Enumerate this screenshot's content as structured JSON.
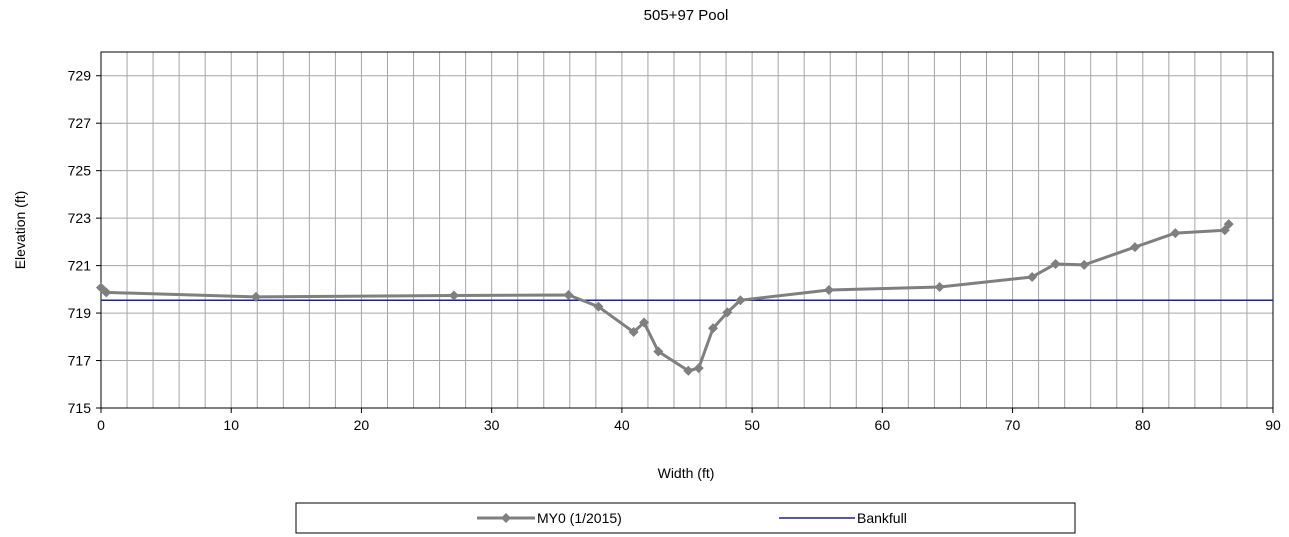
{
  "chart_data": {
    "type": "line",
    "title": "505+97 Pool",
    "xlabel": "Width (ft)",
    "ylabel": "Elevation (ft)",
    "xlim": [
      0,
      90
    ],
    "ylim": [
      715,
      730
    ],
    "x_ticks": [
      0,
      10,
      20,
      30,
      40,
      50,
      60,
      70,
      80,
      90
    ],
    "y_ticks": [
      715,
      717,
      719,
      721,
      723,
      725,
      727,
      729
    ],
    "x_tick_labels": [
      "0",
      "10",
      "20",
      "30",
      "40",
      "50",
      "60",
      "70",
      "80",
      "90"
    ],
    "y_tick_labels": [
      "715",
      "717",
      "719",
      "721",
      "723",
      "725",
      "727",
      "729"
    ],
    "grid": "vertical gridlines every 2 ft; horizontal gridlines at labeled ticks",
    "legend_position": "bottom",
    "series": [
      {
        "name": "MY0 (1/2015)",
        "color": "#7f7f7f",
        "marker": "diamond",
        "x": [
          0.0,
          0.4,
          11.9,
          27.1,
          35.9,
          38.2,
          40.9,
          41.7,
          42.8,
          45.1,
          45.9,
          47.0,
          48.1,
          49.1,
          55.9,
          64.4,
          71.5,
          73.3,
          75.5,
          79.4,
          82.5,
          86.3,
          86.6
        ],
        "y": [
          720.07,
          719.87,
          719.68,
          719.74,
          719.76,
          719.27,
          718.2,
          718.6,
          717.38,
          716.57,
          716.68,
          718.36,
          719.03,
          719.54,
          719.97,
          720.1,
          720.52,
          721.07,
          721.03,
          721.78,
          722.37,
          722.49,
          722.75
        ]
      },
      {
        "name": "Bankfull",
        "color": "#1f1fa3",
        "marker": "none",
        "x": [
          0,
          90
        ],
        "y": [
          719.54,
          719.54
        ]
      }
    ]
  }
}
